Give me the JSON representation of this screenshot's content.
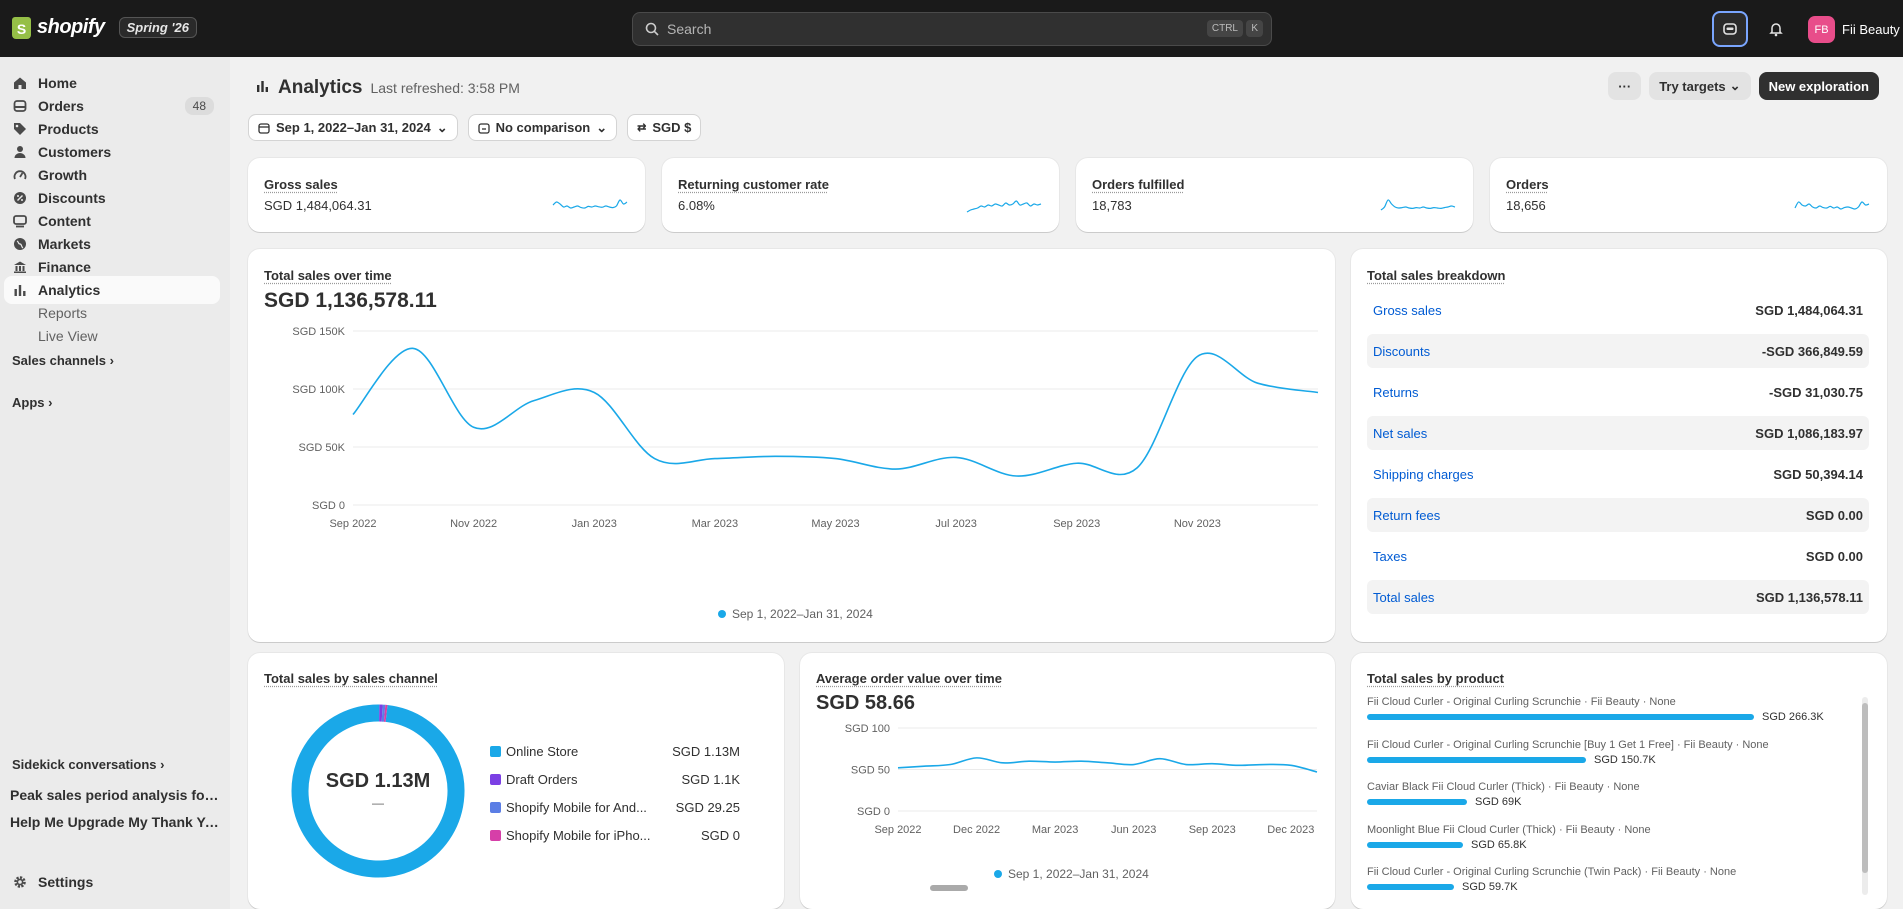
{
  "topbar": {
    "logo_text": "shopify",
    "edition": "Spring '26",
    "search_placeholder": "Search",
    "kbd1": "CTRL",
    "kbd2": "K",
    "avatar_initials": "FB",
    "store_name": "Fii Beauty"
  },
  "sidebar": {
    "items": [
      {
        "label": "Home",
        "icon": "home-icon"
      },
      {
        "label": "Orders",
        "icon": "orders-icon",
        "badge": "48"
      },
      {
        "label": "Products",
        "icon": "tag-icon"
      },
      {
        "label": "Customers",
        "icon": "person-icon"
      },
      {
        "label": "Growth",
        "icon": "gauge-icon"
      },
      {
        "label": "Discounts",
        "icon": "discount-icon"
      },
      {
        "label": "Content",
        "icon": "content-icon"
      },
      {
        "label": "Markets",
        "icon": "globe-icon"
      },
      {
        "label": "Finance",
        "icon": "bank-icon"
      },
      {
        "label": "Analytics",
        "icon": "bar-chart-icon"
      }
    ],
    "sub_items": [
      "Reports",
      "Live View"
    ],
    "sales_channels": "Sales channels",
    "apps": "Apps",
    "sidekick_conversations": "Sidekick conversations",
    "conversations": [
      "Peak sales period analysis for ...",
      "Help Me Upgrade My Thank Yo..."
    ],
    "settings": "Settings"
  },
  "page": {
    "title": "Analytics",
    "last_refreshed": "Last refreshed: 3:58 PM",
    "more_label": "···",
    "try_targets": "Try targets",
    "new_exploration": "New exploration",
    "date_range": "Sep 1, 2022–Jan 31, 2024",
    "comparison": "No comparison",
    "currency": "SGD $"
  },
  "kpis": [
    {
      "title": "Gross sales",
      "value": "SGD 1,484,064.31",
      "spark": [
        0.55,
        0.7,
        0.6,
        0.45,
        0.5,
        0.4,
        0.45,
        0.5,
        0.42,
        0.4,
        0.48,
        0.45,
        0.5,
        0.46,
        0.44,
        0.5,
        0.45,
        0.42,
        0.5,
        0.8,
        0.6,
        0.7
      ]
    },
    {
      "title": "Returning customer rate",
      "value": "6.08%",
      "spark": [
        0.2,
        0.3,
        0.35,
        0.4,
        0.5,
        0.45,
        0.55,
        0.5,
        0.6,
        0.55,
        0.5,
        0.65,
        0.55,
        0.6,
        0.75,
        0.55,
        0.6,
        0.65,
        0.5,
        0.6,
        0.55,
        0.6
      ]
    },
    {
      "title": "Orders fulfilled",
      "value": "18,783",
      "spark": [
        0.3,
        0.45,
        0.8,
        0.6,
        0.45,
        0.4,
        0.42,
        0.45,
        0.4,
        0.38,
        0.42,
        0.4,
        0.45,
        0.4,
        0.38,
        0.42,
        0.4,
        0.38,
        0.42,
        0.45,
        0.5,
        0.45
      ]
    },
    {
      "title": "Orders",
      "value": "18,656",
      "spark": [
        0.4,
        0.7,
        0.55,
        0.5,
        0.6,
        0.45,
        0.4,
        0.5,
        0.42,
        0.4,
        0.48,
        0.4,
        0.45,
        0.35,
        0.42,
        0.45,
        0.4,
        0.35,
        0.45,
        0.7,
        0.55,
        0.6
      ]
    }
  ],
  "total_sales_chart": {
    "title": "Total sales over time",
    "total": "SGD 1,136,578.11",
    "legend": "Sep 1, 2022–Jan 31, 2024"
  },
  "breakdown": {
    "title": "Total sales breakdown",
    "rows": [
      {
        "label": "Gross sales",
        "value": "SGD 1,484,064.31"
      },
      {
        "label": "Discounts",
        "value": "-SGD 366,849.59"
      },
      {
        "label": "Returns",
        "value": "-SGD 31,030.75"
      },
      {
        "label": "Net sales",
        "value": "SGD 1,086,183.97"
      },
      {
        "label": "Shipping charges",
        "value": "SGD 50,394.14"
      },
      {
        "label": "Return fees",
        "value": "SGD 0.00"
      },
      {
        "label": "Taxes",
        "value": "SGD 0.00"
      },
      {
        "label": "Total sales",
        "value": "SGD 1,136,578.11"
      }
    ]
  },
  "channels": {
    "title": "Total sales by sales channel",
    "center_value": "SGD 1.13M",
    "center_sub": "—",
    "items": [
      {
        "name": "Online Store",
        "value": "SGD 1.13M",
        "color": "#1aa8e8",
        "share": 0.985
      },
      {
        "name": "Draft Orders",
        "value": "SGD 1.1K",
        "color": "#7b3fe4",
        "share": 0.006
      },
      {
        "name": "Shopify Mobile for And...",
        "value": "SGD 29.25",
        "color": "#5b7ee5",
        "share": 0.005
      },
      {
        "name": "Shopify Mobile for iPho...",
        "value": "SGD 0",
        "color": "#d63fa8",
        "share": 0.004
      }
    ]
  },
  "aov": {
    "title": "Average order value over time",
    "value": "SGD 58.66",
    "legend": "Sep 1, 2022–Jan 31, 2024"
  },
  "products": {
    "title": "Total sales by product",
    "items": [
      {
        "name": "Fii Cloud Curler - Original Curling Scrunchie · Fii Beauty · None",
        "value": "SGD 266.3K",
        "share": 1.0
      },
      {
        "name": "Fii Cloud Curler - Original Curling Scrunchie [Buy 1 Get 1 Free] · Fii Beauty · None",
        "value": "SGD 150.7K",
        "share": 0.566
      },
      {
        "name": "Caviar Black Fii Cloud Curler (Thick) · Fii Beauty · None",
        "value": "SGD 69K",
        "share": 0.259
      },
      {
        "name": "Moonlight Blue Fii Cloud Curler (Thick) · Fii Beauty · None",
        "value": "SGD 65.8K",
        "share": 0.247
      },
      {
        "name": "Fii Cloud Curler - Original Curling Scrunchie (Twin Pack) · Fii Beauty · None",
        "value": "SGD 59.7K",
        "share": 0.224
      }
    ]
  },
  "chart_data": [
    {
      "type": "line",
      "title": "Total sales over time",
      "x_ticks": [
        "Sep 2022",
        "Nov 2022",
        "Jan 2023",
        "Mar 2023",
        "May 2023",
        "Jul 2023",
        "Sep 2023",
        "Nov 2023"
      ],
      "y_ticks": [
        "SGD 0",
        "SGD 50K",
        "SGD 100K",
        "SGD 150K"
      ],
      "ylim": [
        0,
        150000
      ],
      "x": [
        "2022-09",
        "2022-10",
        "2022-11",
        "2022-12",
        "2023-01",
        "2023-02",
        "2023-03",
        "2023-04",
        "2023-05",
        "2023-06",
        "2023-07",
        "2023-08",
        "2023-09",
        "2023-10",
        "2023-11",
        "2023-12",
        "2024-01"
      ],
      "series": [
        {
          "values": [
            78000,
            135000,
            67000,
            90000,
            97000,
            40000,
            40000,
            42000,
            40000,
            31000,
            41000,
            25000,
            36000,
            32000,
            128000,
            105000,
            97000
          ]
        }
      ],
      "grid": true
    },
    {
      "type": "line",
      "title": "Average order value over time",
      "x_ticks": [
        "Sep 2022",
        "Dec 2022",
        "Mar 2023",
        "Jun 2023",
        "Sep 2023",
        "Dec 2023"
      ],
      "y_ticks": [
        "SGD 0",
        "SGD 50",
        "SGD 100"
      ],
      "ylim": [
        0,
        100
      ],
      "x": [
        "2022-09",
        "2022-10",
        "2022-11",
        "2022-12",
        "2023-01",
        "2023-02",
        "2023-03",
        "2023-04",
        "2023-05",
        "2023-06",
        "2023-07",
        "2023-08",
        "2023-09",
        "2023-10",
        "2023-11",
        "2023-12",
        "2024-01"
      ],
      "series": [
        {
          "values": [
            52,
            54,
            56,
            64,
            58,
            60,
            59,
            60,
            58,
            56,
            63,
            56,
            57,
            55,
            56,
            55,
            47
          ]
        }
      ],
      "grid": true
    },
    {
      "type": "pie",
      "title": "Total sales by sales channel",
      "categories": [
        "Online Store",
        "Draft Orders",
        "Shopify Mobile for And...",
        "Shopify Mobile for iPho..."
      ],
      "values": [
        1130000,
        1100,
        29.25,
        0
      ]
    },
    {
      "type": "bar",
      "title": "Total sales by product",
      "categories": [
        "Fii Cloud Curler - Original Curling Scrunchie",
        "Fii Cloud Curler - Original Curling Scrunchie [Buy 1 Get 1 Free]",
        "Caviar Black Fii Cloud Curler (Thick)",
        "Moonlight Blue Fii Cloud Curler (Thick)",
        "Fii Cloud Curler - Original Curling Scrunchie (Twin Pack)"
      ],
      "values": [
        266300,
        150700,
        69000,
        65800,
        59700
      ]
    }
  ]
}
